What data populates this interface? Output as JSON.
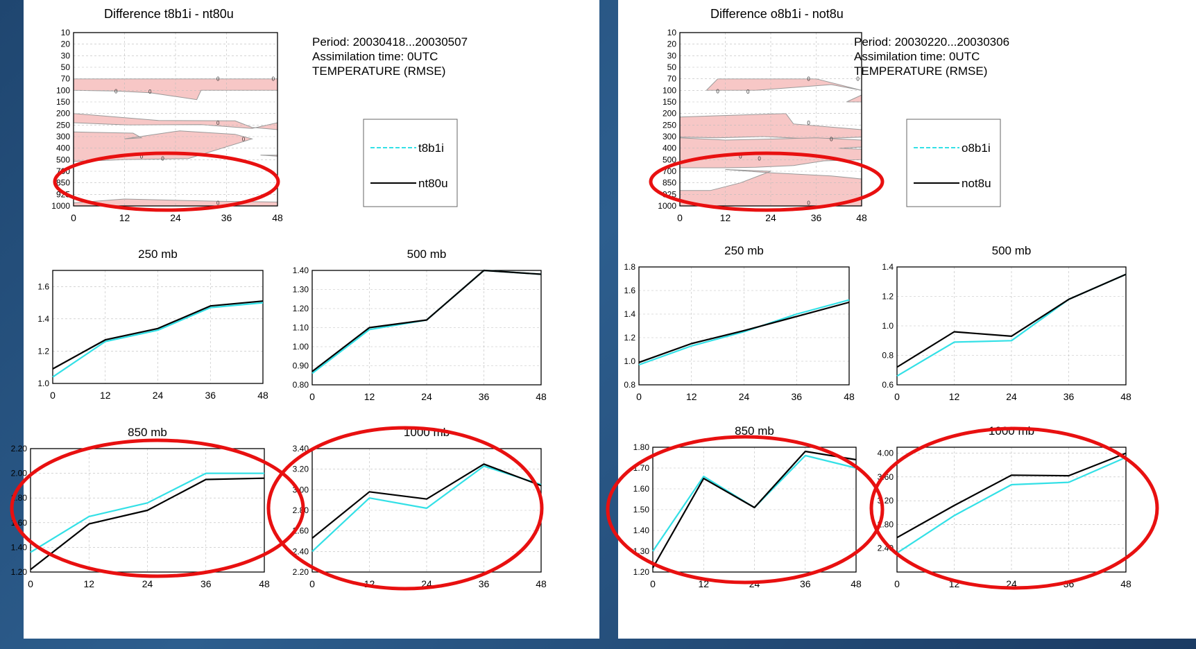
{
  "colors": {
    "exp_line": "#33e0e6",
    "ctrl_line": "#000000",
    "fill": "#f7c7c6",
    "highlight": "#e81010",
    "grid": "#bbbbbb"
  },
  "highlight_ellipses": true,
  "chart_data": [
    {
      "id": "left",
      "difference": {
        "type": "heatmap",
        "title": "Difference t8b1i - nt80u",
        "y_levels": [
          "10",
          "20",
          "30",
          "50",
          "70",
          "100",
          "150",
          "200",
          "250",
          "300",
          "400",
          "500",
          "700",
          "850",
          "925",
          "1000"
        ],
        "x_ticks": [
          "0",
          "12",
          "24",
          "36",
          "48"
        ],
        "contour_label": "0",
        "info": [
          "Period: 20030418...20030507",
          "Assimilation time: 0UTC",
          "TEMPERATURE  (RMSE)"
        ],
        "legend": [
          "t8b1i",
          "nt80u"
        ],
        "shaded": [
          [
            [
              0,
              70
            ],
            [
              48,
              70
            ],
            [
              48,
              100
            ],
            [
              30,
              100
            ],
            [
              29,
              140
            ],
            [
              18,
              110
            ],
            [
              10,
              103
            ],
            [
              0,
              100
            ]
          ],
          [
            [
              0,
              200
            ],
            [
              20,
              230
            ],
            [
              38,
              232
            ],
            [
              42,
              260
            ],
            [
              48,
              270
            ],
            [
              48,
              240
            ],
            [
              42,
              265
            ],
            [
              30,
              248
            ],
            [
              13,
              250
            ],
            [
              0,
              240
            ]
          ],
          [
            [
              0,
              280
            ],
            [
              14,
              285
            ],
            [
              16,
              310
            ],
            [
              12,
              320
            ],
            [
              25,
              275
            ],
            [
              38,
              290
            ],
            [
              42,
              320
            ],
            [
              27,
              490
            ],
            [
              12,
              500
            ],
            [
              0,
              530
            ]
          ],
          [
            [
              44,
              460
            ],
            [
              48,
              460
            ],
            [
              48,
              470
            ]
          ],
          [
            [
              0,
              980
            ],
            [
              12,
              955
            ],
            [
              34,
              970
            ],
            [
              48,
              975
            ],
            [
              48,
              1000
            ],
            [
              0,
              1000
            ]
          ]
        ]
      },
      "line_charts": [
        {
          "type": "line",
          "title": "250 mb",
          "x": [
            0,
            12,
            24,
            36,
            48
          ],
          "ylim": [
            1.0,
            1.7
          ],
          "yticks": [
            1.0,
            1.2,
            1.4,
            1.6
          ],
          "ydec": 1,
          "series": [
            {
              "name": "t8b1i",
              "values": [
                1.04,
                1.26,
                1.33,
                1.47,
                1.5
              ]
            },
            {
              "name": "nt80u",
              "values": [
                1.09,
                1.27,
                1.34,
                1.48,
                1.51
              ]
            }
          ]
        },
        {
          "type": "line",
          "title": "500 mb",
          "x": [
            0,
            12,
            24,
            36,
            48
          ],
          "ylim": [
            0.8,
            1.4
          ],
          "yticks": [
            0.8,
            0.9,
            1.0,
            1.1,
            1.2,
            1.3,
            1.4
          ],
          "ydec": 2,
          "series": [
            {
              "name": "t8b1i",
              "values": [
                0.86,
                1.09,
                1.14,
                1.4,
                1.38
              ]
            },
            {
              "name": "nt80u",
              "values": [
                0.87,
                1.1,
                1.14,
                1.4,
                1.38
              ]
            }
          ]
        },
        {
          "type": "line",
          "title": "850 mb",
          "x": [
            0,
            12,
            24,
            36,
            48
          ],
          "ylim": [
            1.2,
            2.2
          ],
          "yticks": [
            1.2,
            1.4,
            1.6,
            1.8,
            2.0,
            2.2
          ],
          "ydec": 2,
          "series": [
            {
              "name": "t8b1i",
              "values": [
                1.36,
                1.65,
                1.76,
                2.0,
                2.0
              ]
            },
            {
              "name": "nt80u",
              "values": [
                1.22,
                1.59,
                1.7,
                1.95,
                1.96
              ]
            }
          ]
        },
        {
          "type": "line",
          "title": "1000 mb",
          "x": [
            0,
            12,
            24,
            36,
            48
          ],
          "ylim": [
            2.2,
            3.4
          ],
          "yticks": [
            2.2,
            2.4,
            2.6,
            2.8,
            3.0,
            3.2,
            3.4
          ],
          "ydec": 2,
          "series": [
            {
              "name": "t8b1i",
              "values": [
                2.4,
                2.92,
                2.82,
                3.23,
                3.05
              ]
            },
            {
              "name": "nt80u",
              "values": [
                2.53,
                2.98,
                2.91,
                3.25,
                3.04
              ]
            }
          ]
        }
      ]
    },
    {
      "id": "right",
      "difference": {
        "type": "heatmap",
        "title": "Difference o8b1i - not8u",
        "y_levels": [
          "10",
          "20",
          "30",
          "50",
          "70",
          "100",
          "150",
          "200",
          "250",
          "300",
          "400",
          "500",
          "700",
          "850",
          "925",
          "1000"
        ],
        "x_ticks": [
          "0",
          "12",
          "24",
          "36",
          "48"
        ],
        "contour_label": "0",
        "info": [
          "Period: 20030220...20030306",
          "Assimilation time: 0UTC",
          "TEMPERATURE  (RMSE)"
        ],
        "legend": [
          "o8b1i",
          "not8u"
        ],
        "shaded": [
          [
            [
              7,
              100
            ],
            [
              10,
              70
            ],
            [
              36,
              70
            ],
            [
              48,
              100
            ],
            [
              40,
              85
            ],
            [
              20,
              100
            ]
          ],
          [
            [
              44,
              150
            ],
            [
              48,
              150
            ],
            [
              48,
              120
            ]
          ],
          [
            [
              0,
              215
            ],
            [
              28,
              200
            ],
            [
              30,
              245
            ],
            [
              48,
              270
            ],
            [
              48,
              305
            ],
            [
              35,
              320
            ],
            [
              22,
              300
            ],
            [
              10,
              310
            ],
            [
              0,
              305
            ]
          ],
          [
            [
              0,
              310
            ],
            [
              12,
              330
            ],
            [
              26,
              320
            ],
            [
              36,
              310
            ],
            [
              48,
              330
            ],
            [
              48,
              390
            ],
            [
              42,
              400
            ],
            [
              48,
              410
            ],
            [
              48,
              500
            ],
            [
              38,
              520
            ],
            [
              30,
              600
            ],
            [
              20,
              630
            ],
            [
              12,
              640
            ],
            [
              0,
              640
            ]
          ],
          [
            [
              12,
              670
            ],
            [
              24,
              700
            ],
            [
              16,
              850
            ],
            [
              8,
              900
            ],
            [
              0,
              900
            ],
            [
              0,
              1000
            ],
            [
              48,
              1000
            ],
            [
              48,
              800
            ],
            [
              40,
              760
            ],
            [
              24,
              720
            ]
          ]
        ]
      },
      "line_charts": [
        {
          "type": "line",
          "title": "250 mb",
          "x": [
            0,
            12,
            24,
            36,
            48
          ],
          "ylim": [
            0.8,
            1.8
          ],
          "yticks": [
            0.8,
            1.0,
            1.2,
            1.4,
            1.6,
            1.8
          ],
          "ydec": 1,
          "series": [
            {
              "name": "o8b1i",
              "values": [
                0.97,
                1.13,
                1.25,
                1.4,
                1.52
              ]
            },
            {
              "name": "not8u",
              "values": [
                0.99,
                1.15,
                1.26,
                1.38,
                1.5
              ]
            }
          ]
        },
        {
          "type": "line",
          "title": "500 mb",
          "x": [
            0,
            12,
            24,
            36,
            48
          ],
          "ylim": [
            0.6,
            1.4
          ],
          "yticks": [
            0.6,
            0.8,
            1.0,
            1.2,
            1.4
          ],
          "ydec": 1,
          "series": [
            {
              "name": "o8b1i",
              "values": [
                0.66,
                0.89,
                0.9,
                1.18,
                1.35
              ]
            },
            {
              "name": "not8u",
              "values": [
                0.72,
                0.96,
                0.93,
                1.18,
                1.35
              ]
            }
          ]
        },
        {
          "type": "line",
          "title": "850 mb",
          "x": [
            0,
            12,
            24,
            36,
            48
          ],
          "ylim": [
            1.2,
            1.8
          ],
          "yticks": [
            1.2,
            1.3,
            1.4,
            1.5,
            1.6,
            1.7,
            1.8
          ],
          "ydec": 2,
          "series": [
            {
              "name": "o8b1i",
              "values": [
                1.3,
                1.66,
                1.51,
                1.76,
                1.7
              ]
            },
            {
              "name": "not8u",
              "values": [
                1.22,
                1.65,
                1.51,
                1.78,
                1.74
              ]
            }
          ]
        },
        {
          "type": "line",
          "title": "1000 mb",
          "x": [
            0,
            12,
            24,
            36,
            48
          ],
          "ylim": [
            2.0,
            4.1
          ],
          "yticks": [
            2.4,
            2.8,
            3.2,
            3.6,
            4.0
          ],
          "ydec": 2,
          "series": [
            {
              "name": "o8b1i",
              "values": [
                2.32,
                2.95,
                3.47,
                3.51,
                3.93
              ]
            },
            {
              "name": "not8u",
              "values": [
                2.58,
                3.12,
                3.63,
                3.62,
                4.0
              ]
            }
          ]
        }
      ]
    }
  ]
}
